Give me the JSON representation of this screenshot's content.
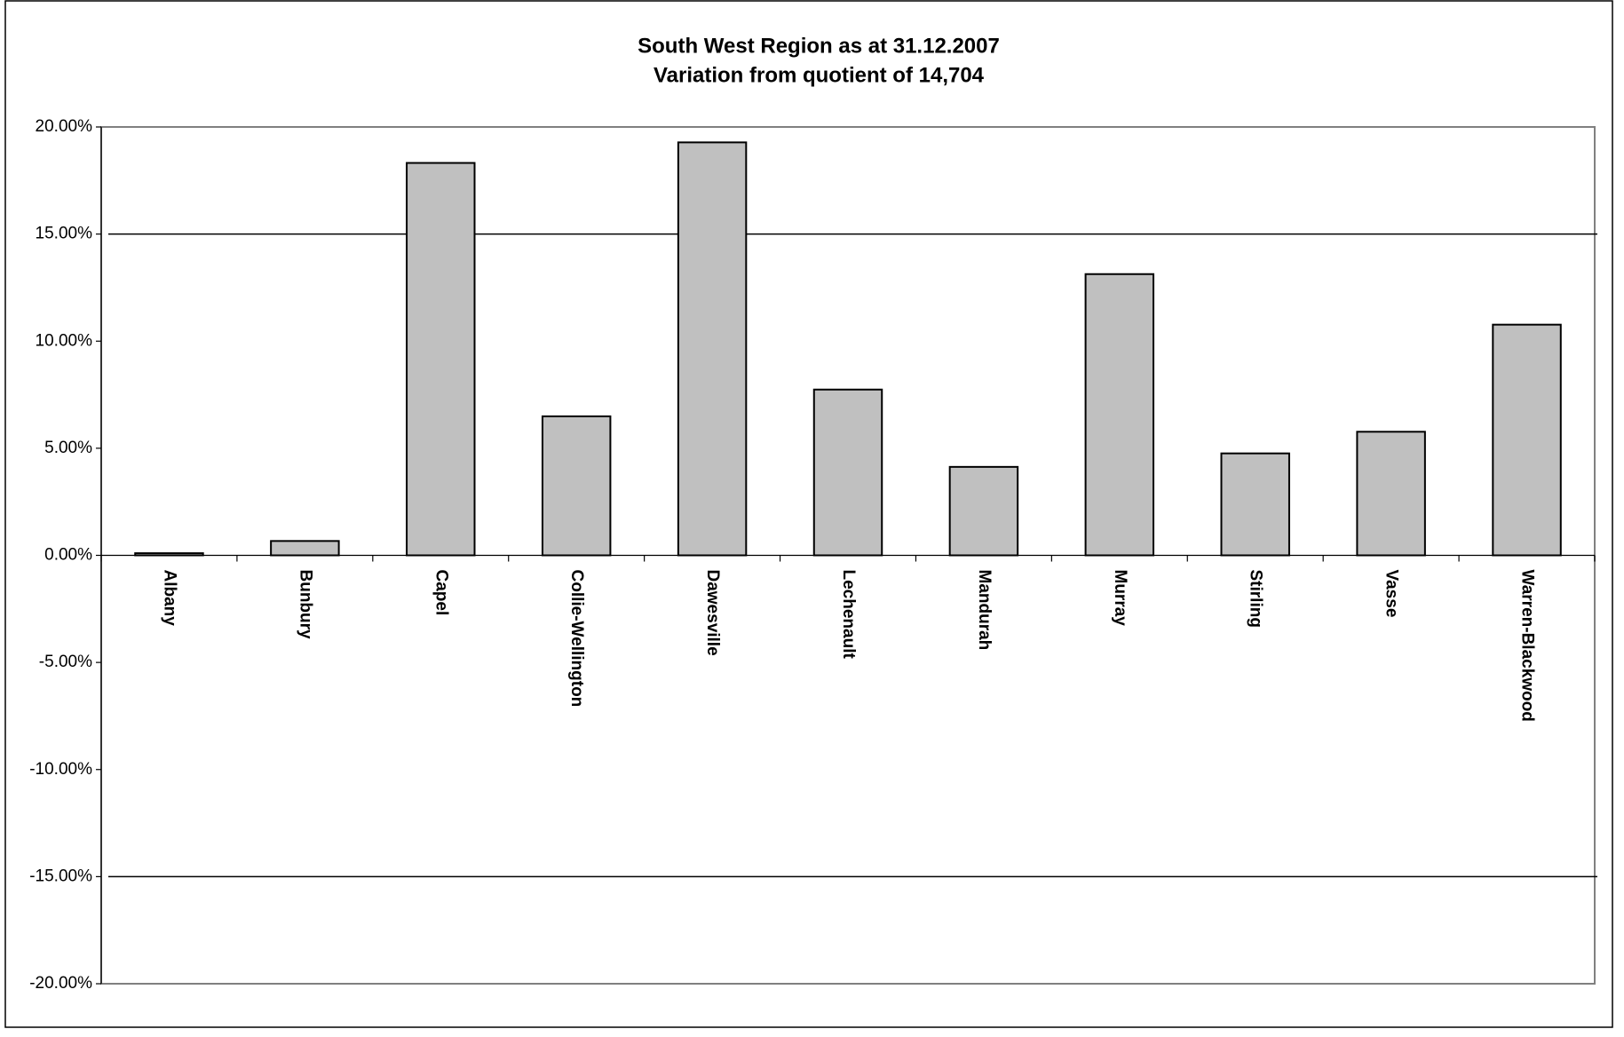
{
  "chart_data": {
    "type": "bar",
    "title": "South West Region as at 31.12.2007",
    "subtitle": "Variation from quotient of 14,704",
    "categories": [
      "Albany",
      "Bunbury",
      "Capel",
      "Collie-Wellington",
      "Dawesville",
      "Lechenault",
      "Mandurah",
      "Murray",
      "Stirling",
      "Vasse",
      "Warren-Blackwood"
    ],
    "values": [
      0.1,
      0.67,
      18.32,
      6.49,
      19.28,
      7.74,
      4.13,
      13.13,
      4.76,
      5.77,
      10.77
    ],
    "color": "#c0c0c0",
    "ylim": [
      -20,
      20
    ],
    "yticks": [
      {
        "value": -20,
        "label": "-20.00%"
      },
      {
        "value": -15,
        "label": "-15.00%"
      },
      {
        "value": -10,
        "label": "-10.00%"
      },
      {
        "value": -5,
        "label": "-5.00%"
      },
      {
        "value": 0,
        "label": "0.00%"
      },
      {
        "value": 5,
        "label": "5.00%"
      },
      {
        "value": 10,
        "label": "10.00%"
      },
      {
        "value": 15,
        "label": "15.00%"
      },
      {
        "value": 20,
        "label": "20.00%"
      }
    ],
    "reference_lines": [
      15,
      -15
    ],
    "grid": false
  }
}
